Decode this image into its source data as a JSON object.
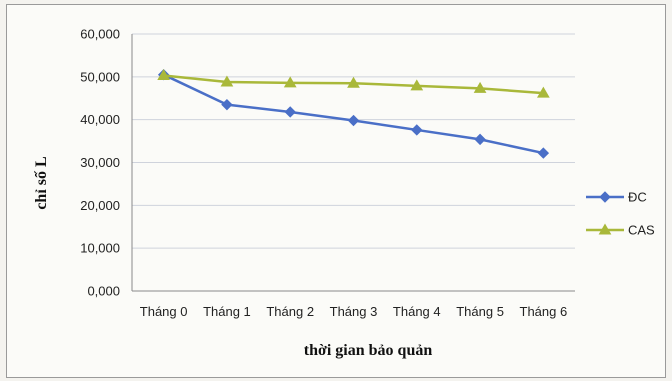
{
  "chart_data": {
    "type": "line",
    "title": "",
    "xlabel": "thời gian bảo quản",
    "ylabel": "chỉ số L",
    "categories": [
      "Tháng 0",
      "Tháng 1",
      "Tháng 2",
      "Tháng 3",
      "Tháng 4",
      "Tháng 5",
      "Tháng 6"
    ],
    "y_tick_labels": [
      "0,000",
      "10,000",
      "20,000",
      "30,000",
      "40,000",
      "50,000",
      "60,000"
    ],
    "ylim": [
      0,
      60
    ],
    "grid": true,
    "legend_position": "right",
    "series": [
      {
        "name": "ĐC",
        "color": "#4a6fc7",
        "marker": "diamond",
        "values": [
          50.5,
          43.5,
          41.8,
          39.8,
          37.6,
          35.4,
          32.2
        ]
      },
      {
        "name": "CAS",
        "color": "#a9b83a",
        "marker": "triangle",
        "values": [
          50.3,
          48.8,
          48.6,
          48.5,
          47.9,
          47.3,
          46.2
        ]
      }
    ]
  }
}
